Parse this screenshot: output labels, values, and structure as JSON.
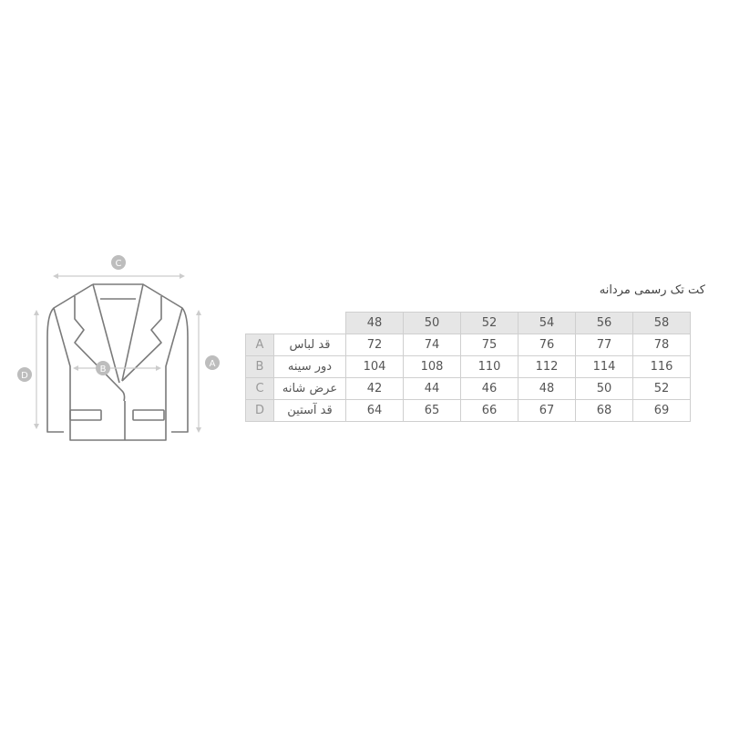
{
  "title": "کت تک رسمی مردانه",
  "diagram_labels": {
    "A": "A",
    "B": "B",
    "C": "C",
    "D": "D"
  },
  "table": {
    "sizes": [
      "48",
      "50",
      "52",
      "54",
      "56",
      "58"
    ],
    "rows": [
      {
        "letter": "A",
        "name": "قد لباس",
        "values": [
          "72",
          "74",
          "75",
          "76",
          "77",
          "78"
        ]
      },
      {
        "letter": "B",
        "name": "دور سینه",
        "values": [
          "104",
          "108",
          "110",
          "112",
          "114",
          "116"
        ]
      },
      {
        "letter": "C",
        "name": "عرض شانه",
        "values": [
          "42",
          "44",
          "46",
          "48",
          "50",
          "52"
        ]
      },
      {
        "letter": "D",
        "name": "قد آستین",
        "values": [
          "64",
          "65",
          "66",
          "67",
          "68",
          "69"
        ]
      }
    ]
  }
}
